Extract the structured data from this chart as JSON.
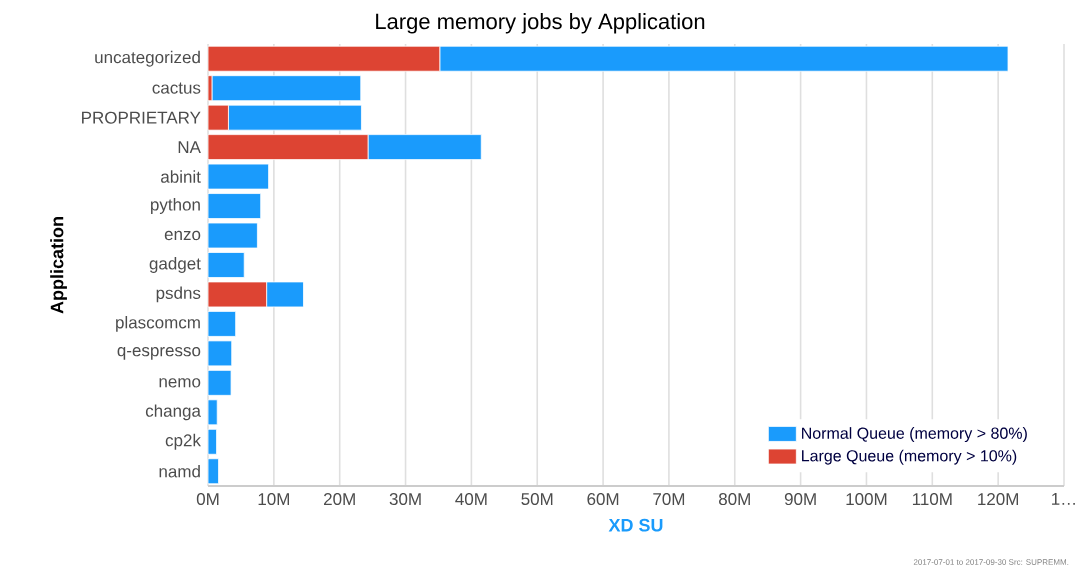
{
  "chart_data": {
    "type": "bar",
    "orientation": "horizontal",
    "stacked": true,
    "title": "Large memory jobs by Application",
    "xlabel": "XD SU",
    "ylabel": "Application",
    "categories": [
      "uncategorized",
      "cactus",
      "PROPRIETARY",
      "NA",
      "abinit",
      "python",
      "enzo",
      "gadget",
      "psdns",
      "plascomcm",
      "q-espresso",
      "nemo",
      "changa",
      "cp2k",
      "namd"
    ],
    "series": [
      {
        "name": "Large Queue (memory > 10%)",
        "color": "#dd4433",
        "values": [
          35.2,
          0.6,
          3.1,
          24.3,
          null,
          null,
          null,
          null,
          8.9,
          null,
          null,
          null,
          null,
          null,
          null
        ]
      },
      {
        "name": "Normal Queue (memory > 80%)",
        "color": "#1a9bfc",
        "values": [
          86.3,
          22.6,
          20.2,
          17.2,
          9.2,
          8.0,
          7.5,
          5.5,
          5.6,
          4.2,
          3.6,
          3.5,
          1.4,
          1.3,
          1.6
        ]
      }
    ],
    "xlim": [
      0,
      130
    ],
    "xticks": [
      {
        "value": 0,
        "label": "0M"
      },
      {
        "value": 10,
        "label": "10M"
      },
      {
        "value": 20,
        "label": "20M"
      },
      {
        "value": 30,
        "label": "30M"
      },
      {
        "value": 40,
        "label": "40M"
      },
      {
        "value": 50,
        "label": "50M"
      },
      {
        "value": 60,
        "label": "60M"
      },
      {
        "value": 70,
        "label": "70M"
      },
      {
        "value": 80,
        "label": "80M"
      },
      {
        "value": 90,
        "label": "90M"
      },
      {
        "value": 100,
        "label": "100M"
      },
      {
        "value": 110,
        "label": "110M"
      },
      {
        "value": 120,
        "label": "120M"
      },
      {
        "value": 130,
        "label": "1…"
      }
    ],
    "grid": "x",
    "legend": "bottom right",
    "annotations": [
      "2017-07-01 to 2017-09-30 Src: SUPREMM."
    ]
  }
}
